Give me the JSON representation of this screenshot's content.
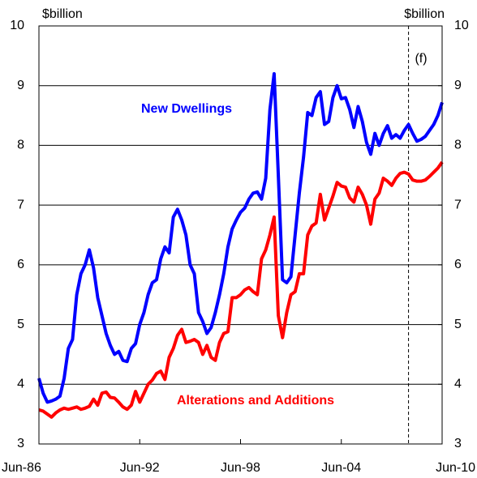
{
  "chart_data": {
    "type": "line",
    "y_unit_left": "$billion",
    "y_unit_right": "$billion",
    "forecast_label": "(f)",
    "categories": [
      "Jun-86",
      null,
      null,
      null,
      null,
      null,
      null,
      null,
      null,
      null,
      null,
      null,
      null,
      null,
      null,
      null,
      null,
      null,
      null,
      null,
      null,
      null,
      null,
      null,
      "Jun-92",
      null,
      null,
      null,
      null,
      null,
      null,
      null,
      null,
      null,
      null,
      null,
      null,
      null,
      null,
      null,
      null,
      null,
      null,
      null,
      null,
      null,
      null,
      null,
      "Jun-98",
      null,
      null,
      null,
      null,
      null,
      null,
      null,
      null,
      null,
      null,
      null,
      null,
      null,
      null,
      null,
      null,
      null,
      null,
      null,
      null,
      null,
      null,
      null,
      "Jun-04",
      null,
      null,
      null,
      null,
      null,
      null,
      null,
      null,
      null,
      null,
      null,
      null,
      null,
      null,
      null,
      null,
      null,
      null,
      null,
      null,
      null,
      null,
      null,
      "Jun-10"
    ],
    "series": [
      {
        "name": "New Dwellings",
        "color": "#0000ff",
        "values": [
          4.1,
          3.85,
          3.7,
          3.72,
          3.75,
          3.8,
          4.1,
          4.6,
          4.75,
          5.5,
          5.85,
          6.0,
          6.25,
          5.95,
          5.45,
          5.15,
          4.85,
          4.65,
          4.5,
          4.55,
          4.4,
          4.38,
          4.6,
          4.68,
          5.0,
          5.2,
          5.5,
          5.7,
          5.75,
          6.1,
          6.3,
          6.2,
          6.8,
          6.93,
          6.75,
          6.5,
          6.0,
          5.85,
          5.2,
          5.05,
          4.85,
          4.95,
          5.2,
          5.5,
          5.85,
          6.3,
          6.6,
          6.75,
          6.88,
          6.95,
          7.1,
          7.2,
          7.22,
          7.1,
          7.45,
          8.6,
          9.2,
          7.5,
          5.75,
          5.7,
          5.8,
          6.5,
          7.2,
          7.8,
          8.55,
          8.5,
          8.8,
          8.9,
          8.35,
          8.4,
          8.8,
          9.0,
          8.78,
          8.8,
          8.6,
          8.3,
          8.65,
          8.4,
          8.05,
          7.85,
          8.2,
          8.0,
          8.2,
          8.33,
          8.12,
          8.18,
          8.12,
          8.25,
          8.35,
          8.2,
          8.07,
          8.1,
          8.15,
          8.25,
          8.35,
          8.5,
          8.72
        ]
      },
      {
        "name": "Alterations and Additions",
        "color": "#ff0000",
        "values": [
          3.57,
          3.55,
          3.5,
          3.45,
          3.52,
          3.57,
          3.6,
          3.58,
          3.6,
          3.62,
          3.58,
          3.6,
          3.63,
          3.75,
          3.65,
          3.85,
          3.87,
          3.78,
          3.77,
          3.7,
          3.62,
          3.58,
          3.65,
          3.88,
          3.7,
          3.85,
          4.0,
          4.07,
          4.18,
          4.22,
          4.08,
          4.45,
          4.6,
          4.82,
          4.92,
          4.7,
          4.72,
          4.75,
          4.7,
          4.5,
          4.65,
          4.45,
          4.4,
          4.7,
          4.85,
          4.88,
          5.45,
          5.45,
          5.5,
          5.58,
          5.62,
          5.55,
          5.5,
          6.1,
          6.25,
          6.5,
          6.8,
          5.15,
          4.78,
          5.2,
          5.5,
          5.55,
          5.85,
          5.85,
          6.5,
          6.65,
          6.7,
          7.18,
          6.75,
          6.95,
          7.15,
          7.38,
          7.32,
          7.3,
          7.12,
          7.05,
          7.3,
          7.18,
          7.0,
          6.68,
          7.1,
          7.2,
          7.45,
          7.4,
          7.33,
          7.45,
          7.53,
          7.55,
          7.52,
          7.42,
          7.4,
          7.4,
          7.42,
          7.48,
          7.55,
          7.62,
          7.72
        ]
      }
    ],
    "ylim": [
      3,
      10
    ],
    "yticks": [
      3,
      4,
      5,
      6,
      7,
      8,
      9,
      10
    ],
    "y2lim": [
      3,
      10
    ],
    "y2ticks": [
      3,
      4,
      5,
      6,
      7,
      8,
      9,
      10
    ],
    "grid": true
  }
}
